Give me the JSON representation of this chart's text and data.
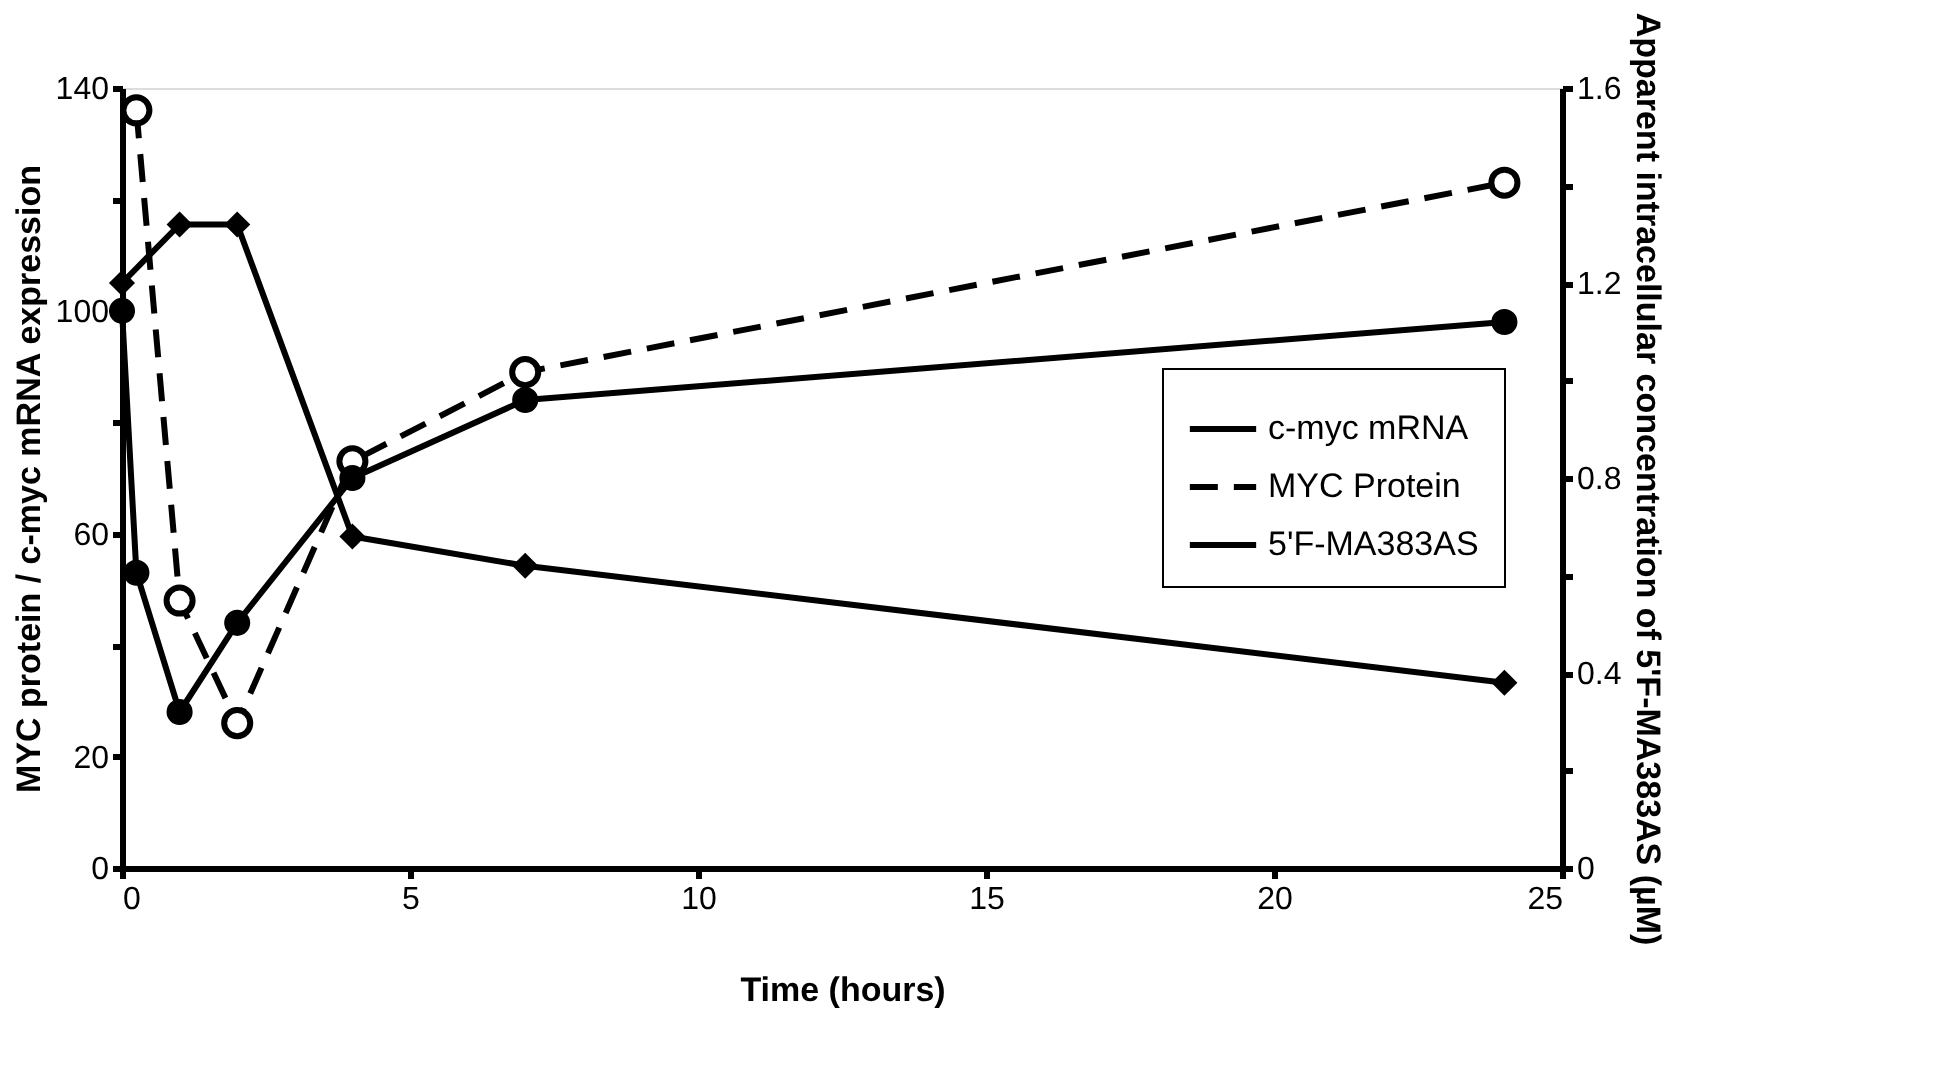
{
  "chart_data": {
    "type": "line",
    "xlabel": "Time (hours)",
    "ylabel": "MYC protein / c-myc mRNA expression",
    "y2label": "Apparent intracellular concentration of 5'F-MA383AS (µM)",
    "xlim": [
      0,
      25
    ],
    "xticks": [
      0,
      5,
      10,
      15,
      20,
      25
    ],
    "ylim": [
      0,
      140
    ],
    "yticks": [
      0,
      {
        "value": 20,
        "label": "20"
      },
      {
        "value": 40,
        "label": null
      },
      60,
      {
        "value": 80,
        "label": null
      },
      100,
      {
        "value": 120,
        "label": null
      },
      140
    ],
    "y2lim": [
      0,
      1.6
    ],
    "y2ticks": [
      0,
      {
        "value": 0.2,
        "label": null
      },
      0.4,
      {
        "value": 0.6,
        "label": null
      },
      0.8,
      {
        "value": 1.0,
        "label": null
      },
      1.2,
      {
        "value": 1.4,
        "label": null
      },
      1.6
    ],
    "grid": false,
    "legend": "right",
    "series": [
      {
        "name": "c-myc mRNA",
        "color": "#000000",
        "marker": "circle",
        "line_style": "solid",
        "x": [
          0,
          0.25,
          1,
          2,
          4,
          7,
          24
        ],
        "values": [
          100,
          53,
          28,
          44,
          70,
          84,
          98
        ]
      },
      {
        "name": "MYC Protein",
        "color": "#000000",
        "marker": "circle_open",
        "line_style": "dashed",
        "x": [
          0.25,
          1,
          2,
          4,
          7,
          24
        ],
        "values": [
          136,
          48,
          26,
          73,
          89,
          123
        ]
      },
      {
        "name": "5'F-MA383AS",
        "color": "#000000",
        "marker": "diamond",
        "line_style": "solid",
        "axis": "y2",
        "x": [
          0,
          1,
          2,
          4,
          7,
          24
        ],
        "values": [
          1.2,
          1.32,
          1.32,
          0.68,
          0.62,
          0.38
        ]
      }
    ]
  }
}
